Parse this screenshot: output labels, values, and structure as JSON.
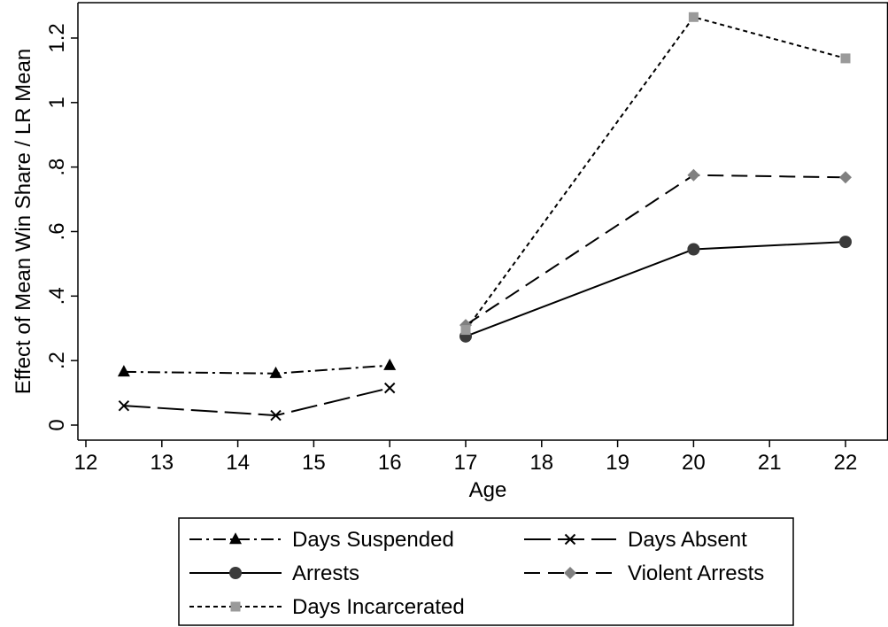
{
  "chart_data": {
    "type": "line",
    "title": "",
    "xlabel": "Age",
    "ylabel": "Effect of Mean Win Share / LR Mean",
    "xlim": [
      12,
      22.6
    ],
    "ylim": [
      -0.04,
      1.3
    ],
    "x_ticks": [
      12,
      13,
      14,
      15,
      16,
      17,
      18,
      19,
      20,
      21,
      22
    ],
    "x_tick_labels": [
      "12",
      "13",
      "14",
      "15",
      "16",
      "17",
      "18",
      "19",
      "20",
      "21",
      "22"
    ],
    "y_ticks": [
      0,
      0.2,
      0.4,
      0.6,
      0.8,
      1.0,
      1.2
    ],
    "y_tick_labels": [
      "0",
      ".2",
      ".4",
      ".6",
      ".8",
      "1",
      "1.2"
    ],
    "grid": false,
    "legend_position": "bottom",
    "series": [
      {
        "name": "Days Suspended",
        "x": [
          12.5,
          14.5,
          16
        ],
        "y": [
          0.165,
          0.16,
          0.185
        ],
        "color": "#000000",
        "marker": "triangle",
        "dash": "dashdot"
      },
      {
        "name": "Days Absent",
        "x": [
          12.5,
          14.5,
          16
        ],
        "y": [
          0.06,
          0.03,
          0.115
        ],
        "color": "#000000",
        "marker": "x",
        "dash": "longdash"
      },
      {
        "name": "Arrests",
        "x": [
          17,
          20,
          22
        ],
        "y": [
          0.275,
          0.545,
          0.568
        ],
        "color": "#3a3a3a",
        "marker": "circle",
        "dash": "solid"
      },
      {
        "name": "Violent Arrests",
        "x": [
          17,
          20,
          22
        ],
        "y": [
          0.31,
          0.775,
          0.768
        ],
        "color": "#808080",
        "marker": "diamond",
        "dash": "dash"
      },
      {
        "name": "Days Incarcerated",
        "x": [
          17,
          20,
          22
        ],
        "y": [
          0.295,
          1.265,
          1.137
        ],
        "color": "#9a9a9a",
        "marker": "square",
        "dash": "shortdash"
      }
    ],
    "legend_layout": [
      [
        "Days Suspended",
        "Days Absent"
      ],
      [
        "Arrests",
        "Violent Arrests"
      ],
      [
        "Days Incarcerated"
      ]
    ]
  }
}
